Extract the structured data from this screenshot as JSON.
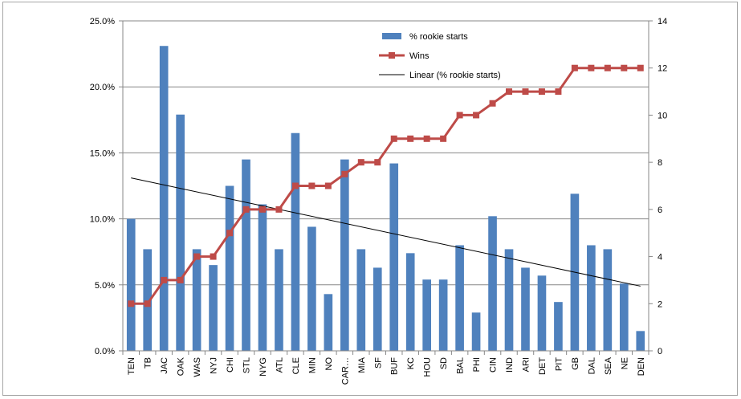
{
  "chart_data": {
    "type": "bar",
    "categories": [
      "TEN",
      "TB",
      "JAC",
      "OAK",
      "WAS",
      "NYJ",
      "CHI",
      "STL",
      "NYG",
      "ATL",
      "CLE",
      "MIN",
      "NO",
      "CAR…",
      "MIA",
      "SF",
      "BUF",
      "KC",
      "HOU",
      "SD",
      "BAL",
      "PHI",
      "CIN",
      "IND",
      "ARI",
      "DET",
      "PIT",
      "GB",
      "DAL",
      "SEA",
      "NE",
      "DEN"
    ],
    "series": [
      {
        "name": "% rookie starts",
        "type": "bar",
        "axis": "left",
        "color": "#4f81bd",
        "values": [
          10.0,
          7.7,
          23.1,
          17.9,
          7.7,
          6.5,
          12.5,
          14.5,
          11.1,
          7.7,
          16.5,
          9.4,
          4.3,
          14.5,
          7.7,
          6.3,
          14.2,
          7.4,
          5.4,
          5.4,
          8.0,
          2.9,
          10.2,
          7.7,
          6.3,
          5.7,
          3.7,
          11.9,
          8.0,
          7.7,
          5.1,
          1.5
        ]
      },
      {
        "name": "Wins",
        "type": "line",
        "axis": "right",
        "color": "#be4b48",
        "values": [
          2,
          2,
          3,
          3,
          4,
          4,
          5,
          6,
          6,
          6,
          7,
          7,
          7,
          7.5,
          8,
          8,
          9,
          9,
          9,
          9,
          10,
          10,
          10.5,
          11,
          11,
          11,
          11,
          12,
          12,
          12,
          12,
          12
        ]
      },
      {
        "name": "Linear (% rookie starts)",
        "type": "trendline",
        "axis": "left",
        "color": "#000000",
        "start": 13.1,
        "end": 4.9
      }
    ],
    "y_left": {
      "min": 0,
      "max": 25,
      "ticks": [
        "0.0%",
        "5.0%",
        "10.0%",
        "15.0%",
        "20.0%",
        "25.0%"
      ],
      "tick_values": [
        0,
        5,
        10,
        15,
        20,
        25
      ]
    },
    "y_right": {
      "min": 0,
      "max": 14,
      "ticks": [
        "0",
        "2",
        "4",
        "6",
        "8",
        "10",
        "12",
        "14"
      ],
      "tick_values": [
        0,
        2,
        4,
        6,
        8,
        10,
        12,
        14
      ]
    },
    "grid": true,
    "legend_position": "top-right"
  }
}
